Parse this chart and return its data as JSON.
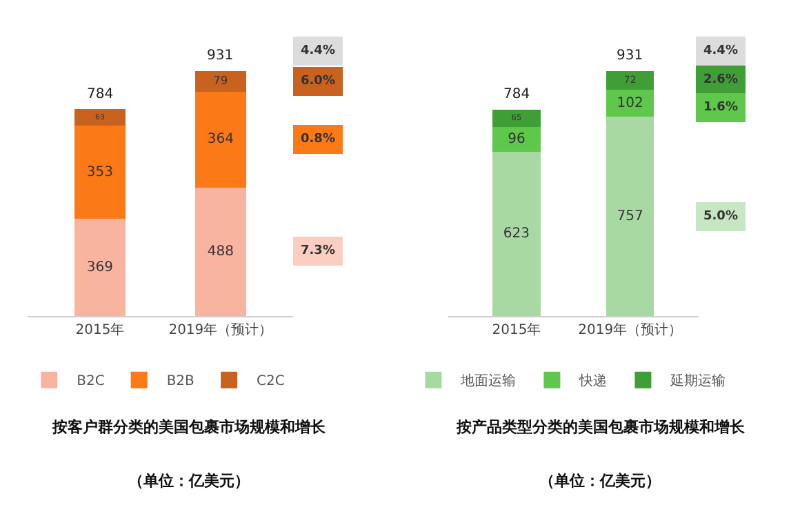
{
  "chart_data": [
    {
      "type": "bar",
      "title": "按客户群分类的美国包裹市场规模和增长",
      "subtitle": "（单位：亿美元）",
      "categories": [
        "2015年",
        "2019年（预计）"
      ],
      "stacked": true,
      "data_labels": true,
      "totals": [
        "784",
        "931"
      ],
      "legend": "bottom",
      "series": [
        {
          "name": "B2C",
          "color": "#f9b4a0",
          "values": [
            369,
            488
          ]
        },
        {
          "name": "B2B",
          "color": "#fb7a17",
          "values": [
            353,
            364
          ]
        },
        {
          "name": "C2C",
          "color": "#c9621e",
          "values": [
            63,
            79
          ]
        }
      ],
      "annotations": [
        "4.4%",
        "6.0%",
        "0.8%",
        "7.3%"
      ]
    },
    {
      "type": "bar",
      "title": "按产品类型分类的美国包裹市场规模和增长",
      "subtitle": "（单位：亿美元）",
      "categories": [
        "2015年",
        "2019年（预计）"
      ],
      "stacked": true,
      "data_labels": true,
      "totals": [
        "784",
        "931"
      ],
      "legend": "bottom",
      "series": [
        {
          "name": "地面运输",
          "color": "#a9d9a2",
          "values": [
            623,
            757
          ]
        },
        {
          "name": "快递",
          "color": "#5ec74c",
          "values": [
            96,
            102
          ]
        },
        {
          "name": "延期运输",
          "color": "#3f9f36",
          "values": [
            65,
            72
          ]
        }
      ],
      "annotations": [
        "4.4%",
        "2.6%",
        "1.6%",
        "5.0%"
      ]
    }
  ]
}
